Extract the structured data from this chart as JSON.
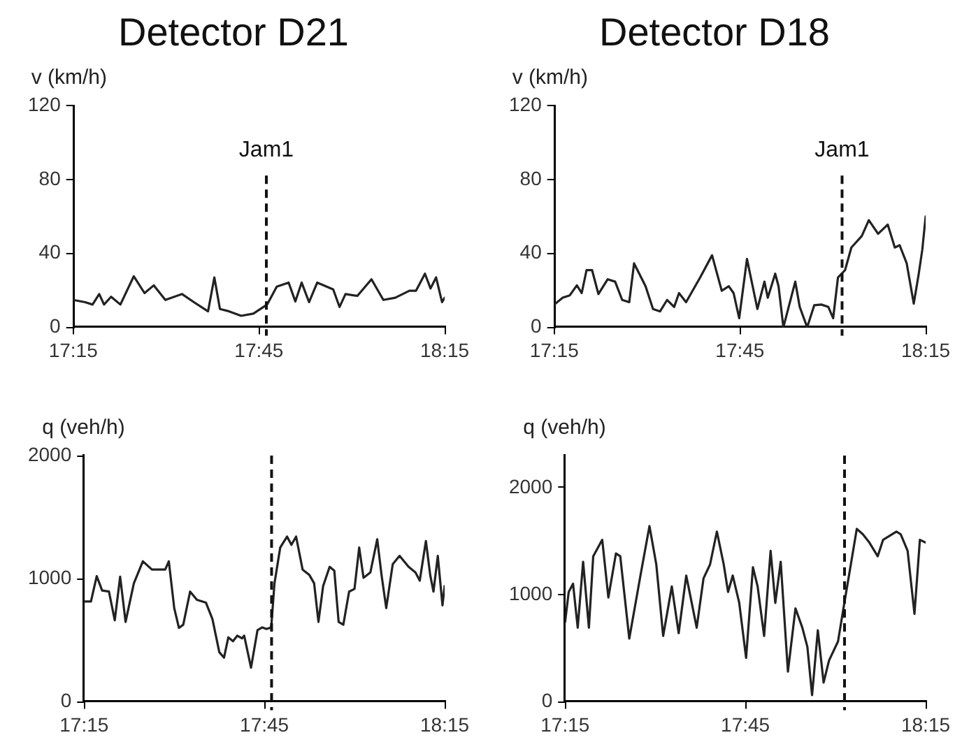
{
  "chart_data": [
    {
      "type": "line",
      "title": "Detector D21",
      "ylabel": "v (km/h)",
      "grid": false,
      "legend": false,
      "marker": "none",
      "line_style": "solid",
      "xlim": [
        17.25,
        18.25
      ],
      "xticks": [
        {
          "value": 17.25,
          "label": "17:15"
        },
        {
          "value": 17.75,
          "label": "17:45"
        },
        {
          "value": 18.25,
          "label": "18:15"
        }
      ],
      "ylim": [
        0,
        120
      ],
      "yticks": [
        0,
        40,
        80,
        120
      ],
      "ref_lines": [
        {
          "axis": "x",
          "value": 17.77,
          "label": "Jam1",
          "color": "#111111",
          "line_style": "dashed"
        }
      ],
      "x": [
        17.25,
        17.282,
        17.302,
        17.32,
        17.333,
        17.352,
        17.377,
        17.413,
        17.442,
        17.467,
        17.498,
        17.543,
        17.575,
        17.613,
        17.63,
        17.645,
        17.67,
        17.702,
        17.735,
        17.772,
        17.798,
        17.83,
        17.848,
        17.865,
        17.885,
        17.907,
        17.95,
        17.967,
        17.983,
        18.015,
        18.053,
        18.085,
        18.117,
        18.155,
        18.173,
        18.197,
        18.212,
        18.227,
        18.243,
        18.25
      ],
      "series": [
        {
          "color": "#222222",
          "values": [
            14.8,
            13.6,
            12.3,
            18,
            12.3,
            16.5,
            12.3,
            27.6,
            18.5,
            22.7,
            14.8,
            18,
            13.6,
            8.6,
            27,
            9.9,
            8.6,
            6.2,
            7.4,
            12.3,
            22,
            24.2,
            14,
            24.2,
            13.6,
            24.2,
            20.5,
            11,
            18,
            17,
            26,
            14.8,
            16,
            19.8,
            19.8,
            29,
            21,
            27,
            13.6,
            16
          ]
        }
      ]
    },
    {
      "type": "line",
      "title": "Detector D18",
      "ylabel": "v (km/h)",
      "grid": false,
      "legend": false,
      "marker": "none",
      "line_style": "solid",
      "xlim": [
        17.25,
        18.25
      ],
      "xticks": [
        {
          "value": 17.25,
          "label": "17:15"
        },
        {
          "value": 17.75,
          "label": "17:45"
        },
        {
          "value": 18.25,
          "label": "18:15"
        }
      ],
      "ylim": [
        0,
        120
      ],
      "yticks": [
        0,
        40,
        80,
        120
      ],
      "ref_lines": [
        {
          "axis": "x",
          "value": 18.025,
          "label": "Jam1",
          "color": "#111111",
          "line_style": "dashed"
        }
      ],
      "x": [
        17.25,
        17.273,
        17.292,
        17.311,
        17.324,
        17.337,
        17.352,
        17.369,
        17.394,
        17.414,
        17.433,
        17.452,
        17.465,
        17.484,
        17.496,
        17.516,
        17.535,
        17.554,
        17.573,
        17.586,
        17.605,
        17.643,
        17.675,
        17.701,
        17.72,
        17.733,
        17.748,
        17.769,
        17.797,
        17.816,
        17.825,
        17.845,
        17.854,
        17.867,
        17.899,
        17.911,
        17.931,
        17.95,
        17.969,
        17.988,
        18.001,
        18.014,
        18.033,
        18.05,
        18.078,
        18.097,
        18.122,
        18.148,
        18.167,
        18.18,
        18.199,
        18.218,
        18.231,
        18.241,
        18.25
      ],
      "series": [
        {
          "color": "#222222",
          "values": [
            12.3,
            16,
            17.3,
            22.7,
            18.5,
            30.9,
            30.9,
            18,
            26,
            24.7,
            14.8,
            13.6,
            34.6,
            27,
            22.2,
            9.9,
            8.6,
            14.8,
            11,
            18.5,
            13.6,
            27,
            39,
            19.8,
            22.2,
            18.5,
            4.9,
            37,
            9.9,
            24.7,
            16,
            29,
            22.2,
            0,
            24.7,
            11,
            0,
            11.9,
            12.3,
            11,
            4.9,
            27,
            30.9,
            43.2,
            49.4,
            58,
            50.6,
            55.6,
            43.2,
            44.4,
            34.6,
            12.8,
            28.4,
            42,
            60
          ]
        }
      ]
    },
    {
      "type": "line",
      "ylabel": "q (veh/h)",
      "grid": false,
      "legend": false,
      "marker": "none",
      "line_style": "solid",
      "xlim": [
        17.25,
        18.25
      ],
      "xticks": [
        {
          "value": 17.25,
          "label": "17:15"
        },
        {
          "value": 17.75,
          "label": "17:45"
        },
        {
          "value": 18.25,
          "label": "18:15"
        }
      ],
      "ylim": [
        0,
        2000
      ],
      "yticks": [
        0,
        1000,
        2000
      ],
      "ref_lines": [
        {
          "axis": "x",
          "value": 17.77,
          "color": "#111111",
          "line_style": "dashed"
        }
      ],
      "x": [
        17.25,
        17.269,
        17.285,
        17.3,
        17.319,
        17.335,
        17.35,
        17.365,
        17.388,
        17.413,
        17.438,
        17.475,
        17.485,
        17.5,
        17.513,
        17.525,
        17.544,
        17.563,
        17.588,
        17.606,
        17.625,
        17.638,
        17.65,
        17.663,
        17.675,
        17.688,
        17.694,
        17.713,
        17.731,
        17.744,
        17.756,
        17.769,
        17.778,
        17.794,
        17.813,
        17.825,
        17.838,
        17.856,
        17.875,
        17.888,
        17.9,
        17.913,
        17.931,
        17.944,
        17.956,
        17.969,
        17.985,
        18.0,
        18.013,
        18.025,
        18.044,
        18.063,
        18.075,
        18.088,
        18.106,
        18.125,
        18.15,
        18.169,
        18.181,
        18.198,
        18.21,
        18.219,
        18.231,
        18.244,
        18.25
      ],
      "series": [
        {
          "color": "#222222",
          "values": [
            814,
            814,
            1020,
            904,
            895,
            662,
            1016,
            649,
            962,
            1141,
            1074,
            1074,
            1141,
            761,
            600,
            626,
            895,
            828,
            805,
            671,
            403,
            358,
            523,
            492,
            537,
            515,
            537,
            277,
            582,
            604,
            591,
            604,
            962,
            1253,
            1342,
            1275,
            1342,
            1074,
            1029,
            962,
            649,
            940,
            1096,
            1065,
            649,
            626,
            895,
            917,
            1253,
            1007,
            1051,
            1320,
            1029,
            761,
            1118,
            1185,
            1096,
            1051,
            984,
            1306,
            1029,
            895,
            1185,
            783,
            940
          ]
        }
      ]
    },
    {
      "type": "line",
      "ylabel": "q (veh/h)",
      "grid": false,
      "legend": false,
      "marker": "none",
      "line_style": "solid",
      "xlim": [
        17.25,
        18.25
      ],
      "xticks": [
        {
          "value": 17.25,
          "label": "17:15"
        },
        {
          "value": 17.75,
          "label": "17:45"
        },
        {
          "value": 18.25,
          "label": "18:15"
        }
      ],
      "ylim": [
        0,
        2300
      ],
      "yticks": [
        0,
        1000,
        2000
      ],
      "ref_lines": [
        {
          "axis": "x",
          "value": 18.025,
          "color": "#111111",
          "line_style": "dashed"
        }
      ],
      "x": [
        17.25,
        17.26,
        17.272,
        17.285,
        17.3,
        17.316,
        17.328,
        17.353,
        17.37,
        17.391,
        17.403,
        17.428,
        17.459,
        17.484,
        17.503,
        17.522,
        17.546,
        17.565,
        17.586,
        17.615,
        17.634,
        17.652,
        17.671,
        17.69,
        17.702,
        17.715,
        17.733,
        17.752,
        17.771,
        17.784,
        17.802,
        17.82,
        17.833,
        17.848,
        17.868,
        17.889,
        17.908,
        17.922,
        17.935,
        17.951,
        17.967,
        17.982,
        18.007,
        18.022,
        18.045,
        18.059,
        18.076,
        18.094,
        18.117,
        18.132,
        18.169,
        18.181,
        18.2,
        18.219,
        18.234,
        18.25
      ],
      "series": [
        {
          "color": "#222222",
          "values": [
            744,
            1026,
            1103,
            692,
            1308,
            692,
            1359,
            1513,
            974,
            1385,
            1359,
            590,
            1179,
            1641,
            1282,
            615,
            1077,
            641,
            1179,
            692,
            1154,
            1282,
            1590,
            1282,
            1026,
            1179,
            923,
            410,
            1256,
            1077,
            615,
            1410,
            923,
            1308,
            282,
            872,
            692,
            513,
            62,
            667,
            179,
            385,
            564,
            872,
            1333,
            1615,
            1564,
            1487,
            1359,
            1513,
            1590,
            1564,
            1410,
            821,
            1513,
            1487
          ]
        }
      ]
    }
  ]
}
